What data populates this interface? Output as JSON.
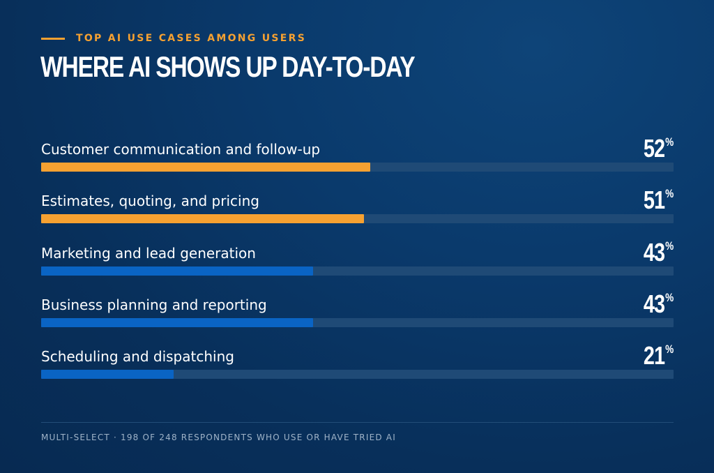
{
  "header": {
    "eyebrow": "TOP AI USE CASES AMONG USERS",
    "title": "WHERE AI SHOWS UP DAY-TO-DAY"
  },
  "colors": {
    "accent": "#f6a131",
    "bar_primary": "#f6a131",
    "bar_secondary": "#0a64c4",
    "track": "#1f4a76",
    "background": "#082f5a"
  },
  "chart_data": {
    "type": "bar",
    "orientation": "horizontal",
    "title": "WHERE AI SHOWS UP DAY-TO-DAY",
    "categories": [
      "Customer communication and follow-up",
      "Estimates, quoting, and pricing",
      "Marketing and lead generation",
      "Business planning and reporting",
      "Scheduling and dispatching"
    ],
    "values": [
      52,
      51,
      43,
      43,
      21
    ],
    "value_labels": [
      "52",
      "51",
      "43",
      "43",
      "21"
    ],
    "unit": "%",
    "highlight": [
      true,
      true,
      false,
      false,
      false
    ],
    "xlim": [
      0,
      100
    ],
    "grid": false,
    "legend": "none"
  },
  "footer": {
    "note": "MULTI-SELECT · 198 OF 248 RESPONDENTS WHO USE OR HAVE TRIED AI"
  }
}
